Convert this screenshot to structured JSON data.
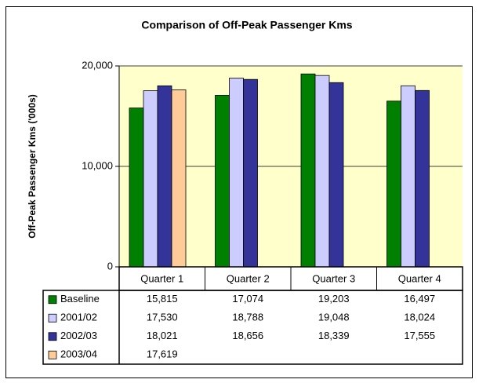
{
  "chart_data": {
    "type": "bar",
    "title": "Comparison of Off-Peak Passenger Kms",
    "y_label": "Off-Peak Passenger Kms ('000s)",
    "categories": [
      "Quarter 1",
      "Quarter 2",
      "Quarter 3",
      "Quarter 4"
    ],
    "series": [
      {
        "name": "Baseline",
        "color": "#008000",
        "values": [
          15815,
          17074,
          19203,
          16497
        ],
        "value_labels": [
          "15,815",
          "17,074",
          "19,203",
          "16,497"
        ]
      },
      {
        "name": "2001/02",
        "color": "#ccccff",
        "values": [
          17530,
          18788,
          19048,
          18024
        ],
        "value_labels": [
          "17,530",
          "18,788",
          "19,048",
          "18,024"
        ]
      },
      {
        "name": "2002/03",
        "color": "#333399",
        "values": [
          18021,
          18656,
          18339,
          17555
        ],
        "value_labels": [
          "18,021",
          "18,656",
          "18,339",
          "17,555"
        ]
      },
      {
        "name": "2003/04",
        "color": "#ffcc99",
        "values": [
          17619,
          null,
          null,
          null
        ],
        "value_labels": [
          "17,619",
          null,
          null,
          null
        ]
      }
    ],
    "ylim": [
      0,
      20000
    ],
    "yticks": [
      0,
      {
        "value": 10000,
        "label": "10,000"
      },
      {
        "value": 20000,
        "label": "20,000"
      }
    ],
    "grid": true
  }
}
